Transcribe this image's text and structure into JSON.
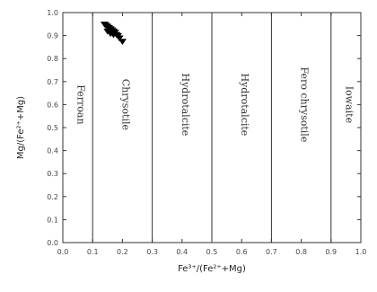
{
  "chart_data": {
    "type": "scatter",
    "title": "",
    "xlabel": "Fe³⁺/(Fe²⁺+Mg)",
    "ylabel": "Mg/(Fe²⁺+Mg)",
    "xlim": [
      0.0,
      1.0
    ],
    "ylim": [
      0.0,
      1.0
    ],
    "x_ticks": [
      "0.0",
      "0.1",
      "0.2",
      "0.3",
      "0.4",
      "0.5",
      "0.6",
      "0.7",
      "0.8",
      "0.9",
      "1.0"
    ],
    "y_ticks": [
      "0.0",
      "0.1",
      "0.2",
      "0.3",
      "0.4",
      "0.5",
      "0.6",
      "0.7",
      "0.8",
      "0.9",
      "1.0"
    ],
    "grid": false,
    "boundaries": [
      0.1,
      0.3,
      0.5,
      0.7,
      0.9
    ],
    "regions": [
      {
        "label": "Ferroan",
        "x": 0.05
      },
      {
        "label": "Chrysotile",
        "x": 0.2
      },
      {
        "label": "Hydrotalcite",
        "x": 0.4
      },
      {
        "label": "Hydrotalcite",
        "x": 0.6
      },
      {
        "label": "Fero chrysotile",
        "x": 0.8
      },
      {
        "label": "Iowaite",
        "x": 0.95
      }
    ],
    "series": [
      {
        "marker": "triangle-down",
        "color": "#000000",
        "points": [
          {
            "x": 0.14,
            "y": 0.95
          },
          {
            "x": 0.145,
            "y": 0.945
          },
          {
            "x": 0.15,
            "y": 0.94
          },
          {
            "x": 0.155,
            "y": 0.935
          },
          {
            "x": 0.16,
            "y": 0.93
          },
          {
            "x": 0.165,
            "y": 0.925
          },
          {
            "x": 0.17,
            "y": 0.92
          },
          {
            "x": 0.175,
            "y": 0.915
          },
          {
            "x": 0.18,
            "y": 0.905
          },
          {
            "x": 0.185,
            "y": 0.9
          },
          {
            "x": 0.19,
            "y": 0.89
          },
          {
            "x": 0.15,
            "y": 0.92
          },
          {
            "x": 0.16,
            "y": 0.91
          },
          {
            "x": 0.17,
            "y": 0.905
          },
          {
            "x": 0.2,
            "y": 0.875
          }
        ]
      }
    ]
  }
}
